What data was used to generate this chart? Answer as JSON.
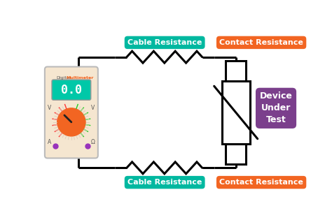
{
  "background_color": "#ffffff",
  "circuit_color": "#000000",
  "circuit_linewidth": 2.2,
  "cable_resistance_bg": "#00b8a0",
  "contact_resistance_bg": "#f26522",
  "device_under_test_bg": "#7b3f8c",
  "label_text_color": "#ffffff",
  "cable_resistance_top_label": "Cable Resistance",
  "cable_resistance_bottom_label": "Cable Resistance",
  "contact_resistance_top_label": "Contact Resistance",
  "contact_resistance_bottom_label": "Contact Resistance",
  "device_under_test_label": "Device\nUnder\nTest",
  "multimeter_bg": "#f5e6d0",
  "multimeter_display_bg": "#00c8a8",
  "multimeter_display_text": "0.0",
  "multimeter_knob_color": "#f26522",
  "fig_width": 4.74,
  "fig_height": 3.15,
  "dpi": 100
}
